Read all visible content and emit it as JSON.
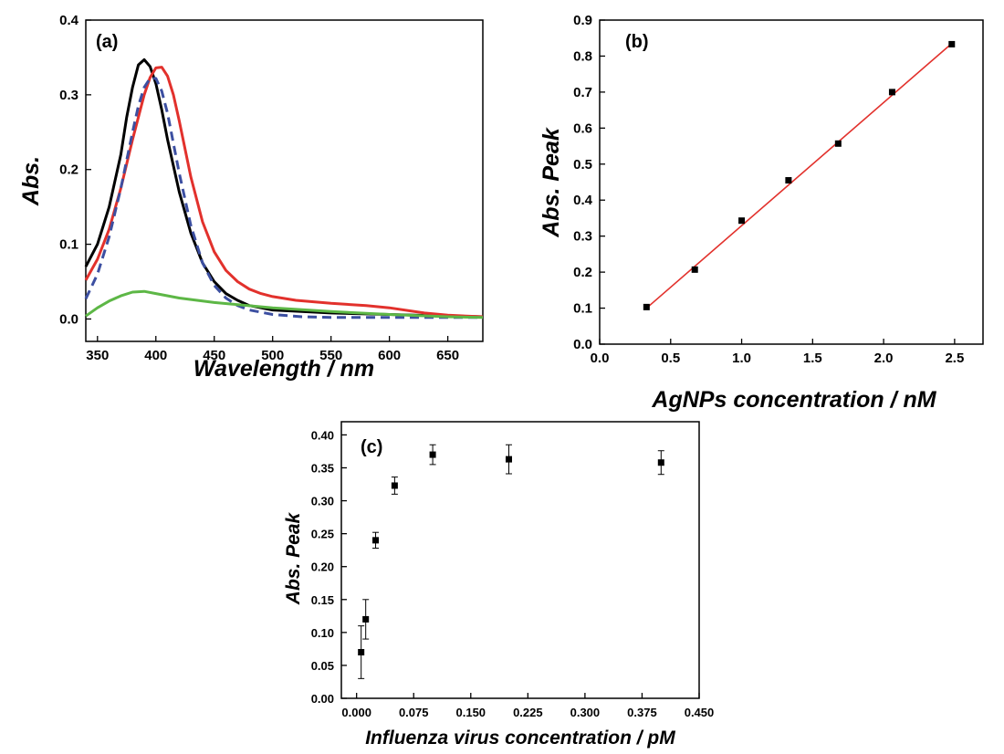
{
  "chart_data": [
    {
      "id": "a",
      "type": "line",
      "panel_label": "(a)",
      "xlabel": "Wavelength / nm",
      "ylabel": "Abs.",
      "xlim": [
        340,
        680
      ],
      "ylim": [
        -0.03,
        0.4
      ],
      "x_ticks": [
        350,
        400,
        450,
        500,
        550,
        600,
        650
      ],
      "y_ticks": [
        0.0,
        0.1,
        0.2,
        0.3,
        0.4
      ],
      "y_tick_labels": [
        "0.0",
        "0.1",
        "0.2",
        "0.3",
        "0.4"
      ],
      "grid": false,
      "series": [
        {
          "color": "#000000",
          "dash": false,
          "x": [
            340,
            350,
            360,
            370,
            375,
            380,
            385,
            390,
            395,
            400,
            405,
            410,
            420,
            430,
            440,
            450,
            460,
            470,
            480,
            500,
            550,
            600,
            650,
            680
          ],
          "y": [
            0.07,
            0.1,
            0.15,
            0.22,
            0.27,
            0.31,
            0.34,
            0.347,
            0.338,
            0.315,
            0.28,
            0.24,
            0.17,
            0.115,
            0.075,
            0.05,
            0.034,
            0.025,
            0.018,
            0.012,
            0.008,
            0.006,
            0.004,
            0.003
          ]
        },
        {
          "color": "#e2312c",
          "dash": false,
          "x": [
            340,
            350,
            360,
            370,
            380,
            390,
            395,
            400,
            405,
            410,
            415,
            420,
            430,
            440,
            450,
            460,
            470,
            480,
            490,
            500,
            520,
            550,
            580,
            600,
            630,
            650,
            680
          ],
          "y": [
            0.052,
            0.08,
            0.12,
            0.175,
            0.24,
            0.3,
            0.323,
            0.336,
            0.337,
            0.325,
            0.3,
            0.265,
            0.19,
            0.13,
            0.09,
            0.065,
            0.05,
            0.04,
            0.034,
            0.03,
            0.025,
            0.021,
            0.018,
            0.015,
            0.008,
            0.005,
            0.003
          ]
        },
        {
          "color": "#3c4fa1",
          "dash": true,
          "x": [
            340,
            350,
            360,
            370,
            380,
            385,
            390,
            395,
            400,
            405,
            410,
            420,
            430,
            440,
            450,
            460,
            470,
            480,
            500,
            525,
            550,
            600,
            650,
            680
          ],
          "y": [
            0.027,
            0.06,
            0.11,
            0.175,
            0.25,
            0.285,
            0.31,
            0.322,
            0.322,
            0.305,
            0.275,
            0.195,
            0.125,
            0.075,
            0.045,
            0.028,
            0.018,
            0.012,
            0.006,
            0.003,
            0.002,
            0.002,
            0.002,
            0.002
          ]
        },
        {
          "color": "#5db746",
          "dash": false,
          "x": [
            340,
            350,
            360,
            370,
            380,
            390,
            400,
            420,
            450,
            500,
            550,
            600,
            650,
            680
          ],
          "y": [
            0.004,
            0.015,
            0.024,
            0.031,
            0.036,
            0.037,
            0.034,
            0.028,
            0.022,
            0.015,
            0.01,
            0.006,
            0.003,
            0.002
          ]
        }
      ]
    },
    {
      "id": "b",
      "type": "scatter",
      "panel_label": "(b)",
      "xlabel": "AgNPs concentration / nM",
      "ylabel": "Abs. Peak",
      "xlim": [
        0.0,
        2.7
      ],
      "ylim": [
        0.0,
        0.9
      ],
      "x_ticks": [
        0.0,
        0.5,
        1.0,
        1.5,
        2.0,
        2.5
      ],
      "x_tick_labels": [
        "0.0",
        "0.5",
        "1.0",
        "1.5",
        "2.0",
        "2.5"
      ],
      "y_ticks": [
        0.0,
        0.1,
        0.2,
        0.3,
        0.4,
        0.5,
        0.6,
        0.7,
        0.8,
        0.9
      ],
      "y_tick_labels": [
        "0.0",
        "0.1",
        "0.2",
        "0.3",
        "0.4",
        "0.5",
        "0.6",
        "0.7",
        "0.8",
        "0.9"
      ],
      "grid": false,
      "x": [
        0.33,
        0.67,
        1.0,
        1.33,
        1.68,
        2.06,
        2.48
      ],
      "y": [
        0.103,
        0.207,
        0.343,
        0.455,
        0.557,
        0.7,
        0.833
      ],
      "fit_line": {
        "x": [
          0.33,
          2.48
        ],
        "y": [
          0.1,
          0.835
        ],
        "color": "#e2312c"
      }
    },
    {
      "id": "c",
      "type": "scatter",
      "panel_label": "(c)",
      "xlabel": "Influenza virus concentration / pM",
      "ylabel": "Abs. Peak",
      "xlim": [
        -0.02,
        0.45
      ],
      "ylim": [
        0.0,
        0.42
      ],
      "x_ticks": [
        0.0,
        0.075,
        0.15,
        0.225,
        0.3,
        0.375,
        0.45
      ],
      "x_tick_labels": [
        "0.000",
        "0.075",
        "0.150",
        "0.225",
        "0.300",
        "0.375",
        "0.450"
      ],
      "y_ticks": [
        0.0,
        0.05,
        0.1,
        0.15,
        0.2,
        0.25,
        0.3,
        0.35,
        0.4
      ],
      "y_tick_labels": [
        "0.00",
        "0.05",
        "0.10",
        "0.15",
        "0.20",
        "0.25",
        "0.30",
        "0.35",
        "0.40"
      ],
      "grid": false,
      "x": [
        0.006,
        0.012,
        0.025,
        0.05,
        0.1,
        0.2,
        0.4
      ],
      "y": [
        0.07,
        0.12,
        0.24,
        0.323,
        0.37,
        0.363,
        0.358
      ],
      "err": [
        0.04,
        0.03,
        0.012,
        0.013,
        0.015,
        0.022,
        0.018
      ]
    }
  ]
}
